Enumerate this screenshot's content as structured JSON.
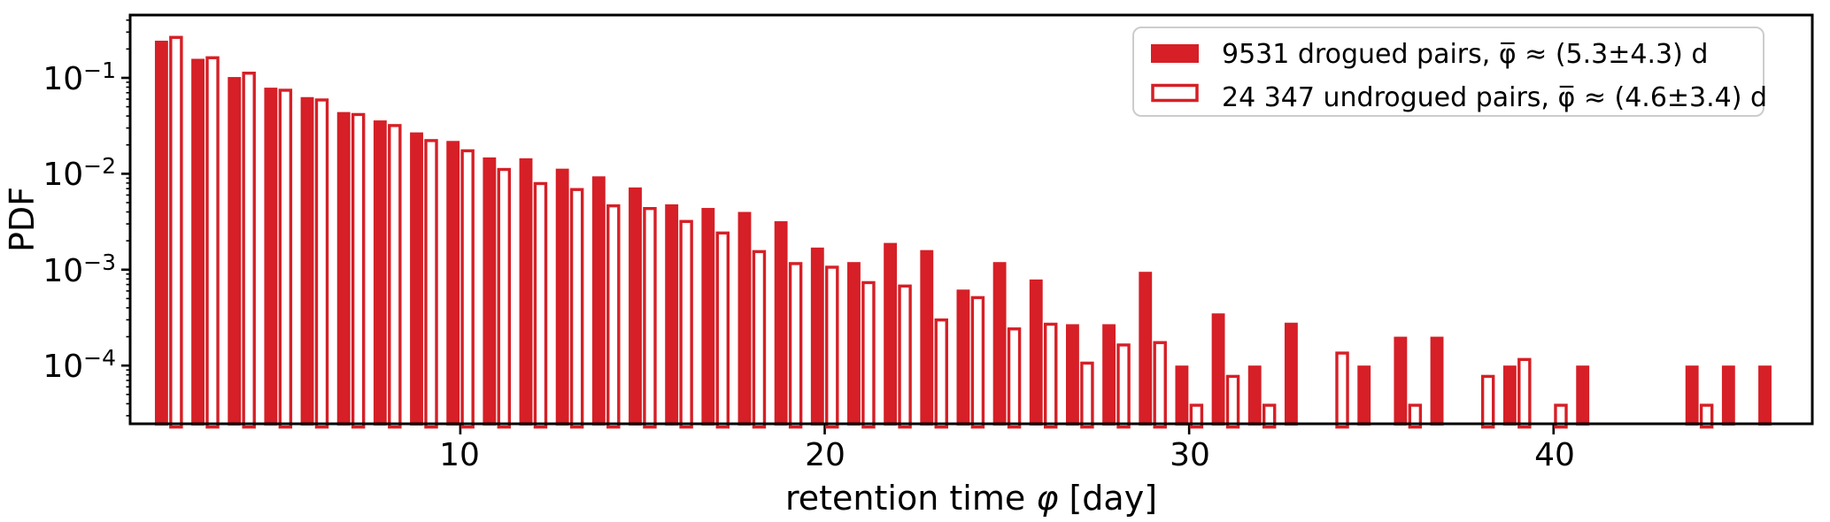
{
  "colors": {
    "bar_red": "#d61f26",
    "axis_black": "#000000",
    "legend_border": "#cccccc",
    "background": "#ffffff"
  },
  "chart_data": {
    "type": "bar",
    "subtype": "paired-histogram",
    "yscale": "log",
    "grid": false,
    "ylabel": "PDF",
    "xlabel_parts": {
      "prefix": "retention time ",
      "symbol": "φ",
      "suffix": " [day]"
    },
    "xlim": [
      0.94,
      47.1
    ],
    "ylim": [
      2.4e-05,
      0.45
    ],
    "x_major_ticks": [
      10,
      20,
      30,
      40
    ],
    "y_major_ticks": [
      {
        "base": "10",
        "exp": "−1"
      },
      {
        "base": "10",
        "exp": "−2"
      },
      {
        "base": "10",
        "exp": "−3"
      },
      {
        "base": "10",
        "exp": "−4"
      }
    ],
    "bin_width_days": 1.0,
    "bar_width_days": 0.4,
    "days": [
      2,
      3,
      4,
      5,
      6,
      7,
      8,
      9,
      10,
      11,
      12,
      13,
      14,
      15,
      16,
      17,
      18,
      19,
      20,
      21,
      22,
      23,
      24,
      25,
      26,
      27,
      28,
      29,
      30,
      31,
      32,
      33,
      34,
      35,
      36,
      37,
      38,
      39,
      40,
      41,
      42,
      43,
      44,
      45,
      46
    ],
    "series": [
      {
        "name": "drogued",
        "legend_label": "9531 drogued pairs, φ̅ ≈ (5.3±4.3) d",
        "style": "filled",
        "values": [
          0.244,
          0.158,
          0.102,
          0.079,
          0.063,
          0.044,
          0.036,
          0.027,
          0.022,
          0.0148,
          0.0145,
          0.0113,
          0.0094,
          0.0072,
          0.0048,
          0.0044,
          0.004,
          0.0032,
          0.0017,
          0.0012,
          0.0019,
          0.0016,
          0.00062,
          0.0012,
          0.00079,
          0.00027,
          0.00027,
          0.00095,
          0.0001,
          0.00035,
          0.0001,
          0.00028,
          null,
          0.0001,
          0.0002,
          0.0002,
          null,
          0.0001,
          null,
          0.0001,
          null,
          null,
          0.0001,
          0.0001,
          0.0001
        ]
      },
      {
        "name": "undrogued",
        "legend_label": "24 347 undrogued pairs, φ̅ ≈ (4.6±3.4) d",
        "style": "outline",
        "values": [
          0.274,
          0.168,
          0.116,
          0.077,
          0.061,
          0.043,
          0.033,
          0.023,
          0.018,
          0.0115,
          0.0082,
          0.0071,
          0.0048,
          0.0045,
          0.0033,
          0.0025,
          0.0016,
          0.0012,
          0.0011,
          0.00076,
          0.0007,
          0.00031,
          0.00053,
          0.00025,
          0.00028,
          0.00011,
          0.00017,
          0.00018,
          4e-05,
          8e-05,
          4e-05,
          null,
          0.00014,
          null,
          4e-05,
          null,
          8e-05,
          0.00012,
          4e-05,
          null,
          null,
          null,
          4e-05,
          null,
          null
        ]
      }
    ],
    "legend_position": "upper right"
  }
}
